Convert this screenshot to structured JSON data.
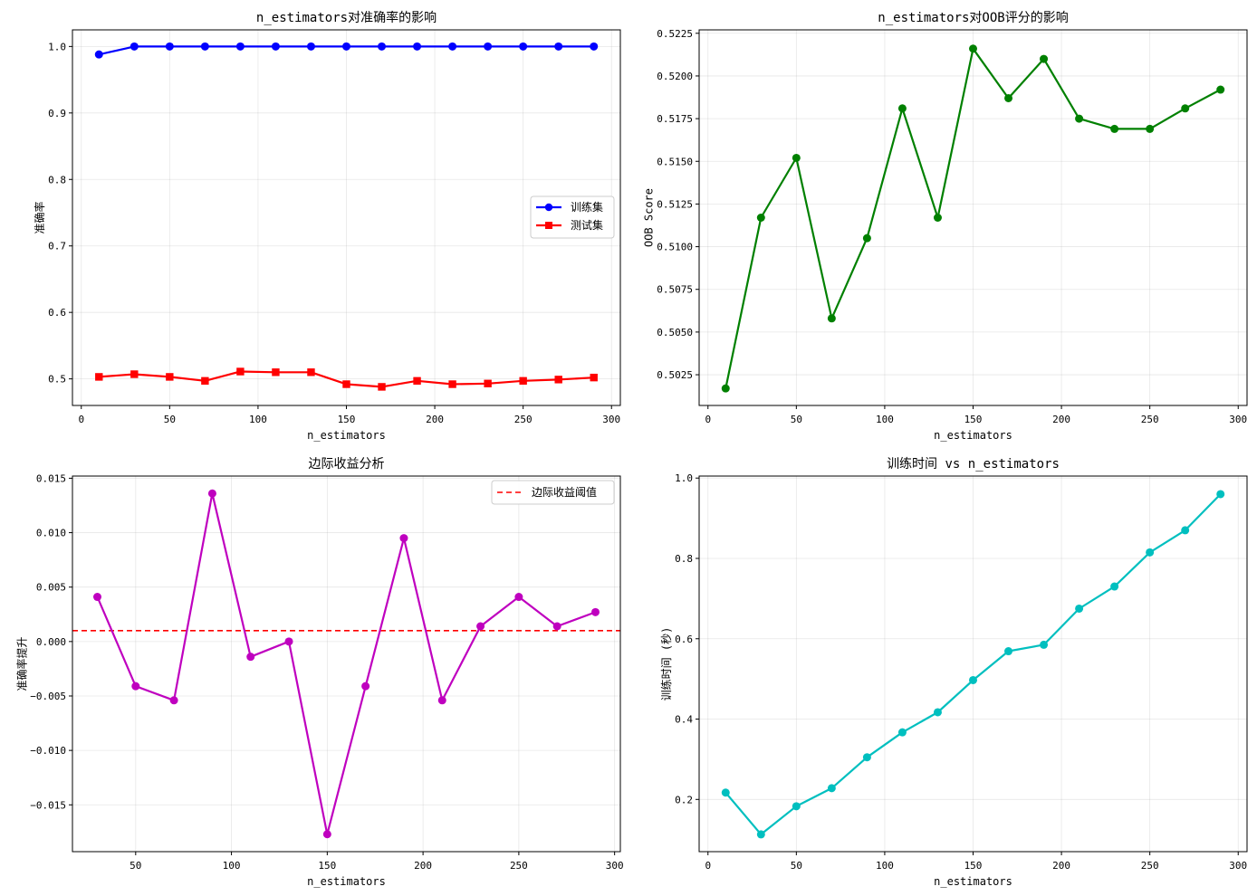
{
  "chart_data": [
    {
      "type": "line",
      "title": "n_estimators对准确率的影响",
      "xlabel": "n_estimators",
      "ylabel": "准确率",
      "xlim": [
        -5,
        305
      ],
      "ylim": [
        0.46,
        1.025
      ],
      "xticks": [
        0,
        50,
        100,
        150,
        200,
        250,
        300
      ],
      "yticks": [
        0.5,
        0.6,
        0.7,
        0.8,
        0.9,
        1.0
      ],
      "ytick_labels": [
        "0.5",
        "0.6",
        "0.7",
        "0.8",
        "0.9",
        "1.0"
      ],
      "grid": true,
      "legend_position": "center-right",
      "x": [
        10,
        30,
        50,
        70,
        90,
        110,
        130,
        150,
        170,
        190,
        210,
        230,
        250,
        270,
        290
      ],
      "series": [
        {
          "name": "训练集",
          "color": "#0000ff",
          "marker": "circle",
          "values": [
            0.988,
            1.0,
            1.0,
            1.0,
            1.0,
            1.0,
            1.0,
            1.0,
            1.0,
            1.0,
            1.0,
            1.0,
            1.0,
            1.0,
            1.0
          ]
        },
        {
          "name": "测试集",
          "color": "#ff0000",
          "marker": "square",
          "values": [
            0.503,
            0.507,
            0.503,
            0.497,
            0.511,
            0.51,
            0.51,
            0.492,
            0.488,
            0.497,
            0.492,
            0.493,
            0.497,
            0.499,
            0.502
          ]
        }
      ]
    },
    {
      "type": "line",
      "title": "n_estimators对OOB评分的影响",
      "xlabel": "n_estimators",
      "ylabel": "OOB Score",
      "xlim": [
        -5,
        305
      ],
      "ylim": [
        0.5007,
        0.5227
      ],
      "xticks": [
        0,
        50,
        100,
        150,
        200,
        250,
        300
      ],
      "yticks": [
        0.5025,
        0.505,
        0.5075,
        0.51,
        0.5125,
        0.515,
        0.5175,
        0.52,
        0.5225
      ],
      "ytick_labels": [
        "0.5025",
        "0.5050",
        "0.5075",
        "0.5100",
        "0.5125",
        "0.5150",
        "0.5175",
        "0.5200",
        "0.5225"
      ],
      "grid": true,
      "x": [
        10,
        30,
        50,
        70,
        90,
        110,
        130,
        150,
        170,
        190,
        210,
        230,
        250,
        270,
        290
      ],
      "series": [
        {
          "color": "#008000",
          "marker": "circle",
          "values": [
            0.5017,
            0.5117,
            0.5152,
            0.5058,
            0.5105,
            0.5181,
            0.5117,
            0.5216,
            0.5187,
            0.521,
            0.5175,
            0.5169,
            0.5169,
            0.5181,
            0.5192
          ]
        }
      ]
    },
    {
      "type": "line",
      "title": "边际收益分析",
      "xlabel": "n_estimators",
      "ylabel": "准确率提升",
      "xlim": [
        17,
        303
      ],
      "ylim": [
        -0.0193,
        0.0152
      ],
      "xticks": [
        50,
        100,
        150,
        200,
        250,
        300
      ],
      "yticks": [
        -0.015,
        -0.01,
        -0.005,
        0.0,
        0.005,
        0.01,
        0.015
      ],
      "ytick_labels": [
        "−0.015",
        "−0.010",
        "−0.005",
        "0.000",
        "0.005",
        "0.010",
        "0.015"
      ],
      "grid": true,
      "legend_position": "top-right",
      "threshold": {
        "name": "边际收益阈值",
        "value": 0.001,
        "color": "#ff0000",
        "style": "dashed"
      },
      "x": [
        30,
        50,
        70,
        90,
        110,
        130,
        150,
        170,
        190,
        210,
        230,
        250,
        270,
        290
      ],
      "series": [
        {
          "color": "#bf00bf",
          "marker": "circle",
          "values": [
            0.0041,
            -0.0041,
            -0.0054,
            0.0136,
            -0.0014,
            0.0,
            -0.0177,
            -0.0041,
            0.0095,
            -0.0054,
            0.0014,
            0.0041,
            0.0014,
            0.0027
          ]
        }
      ]
    },
    {
      "type": "line",
      "title": "训练时间 vs n_estimators",
      "xlabel": "n_estimators",
      "ylabel": "训练时间 (秒)",
      "xlim": [
        -5,
        305
      ],
      "ylim": [
        0.07,
        1.005
      ],
      "xticks": [
        0,
        50,
        100,
        150,
        200,
        250,
        300
      ],
      "yticks": [
        0.2,
        0.4,
        0.6,
        0.8,
        1.0
      ],
      "ytick_labels": [
        "0.2",
        "0.4",
        "0.6",
        "0.8",
        "1.0"
      ],
      "grid": true,
      "x": [
        10,
        30,
        50,
        70,
        90,
        110,
        130,
        150,
        170,
        190,
        210,
        230,
        250,
        270,
        290
      ],
      "series": [
        {
          "color": "#00bfbf",
          "marker": "circle",
          "values": [
            0.217,
            0.113,
            0.183,
            0.228,
            0.305,
            0.367,
            0.417,
            0.497,
            0.569,
            0.585,
            0.675,
            0.73,
            0.815,
            0.87,
            0.96
          ]
        }
      ]
    }
  ]
}
